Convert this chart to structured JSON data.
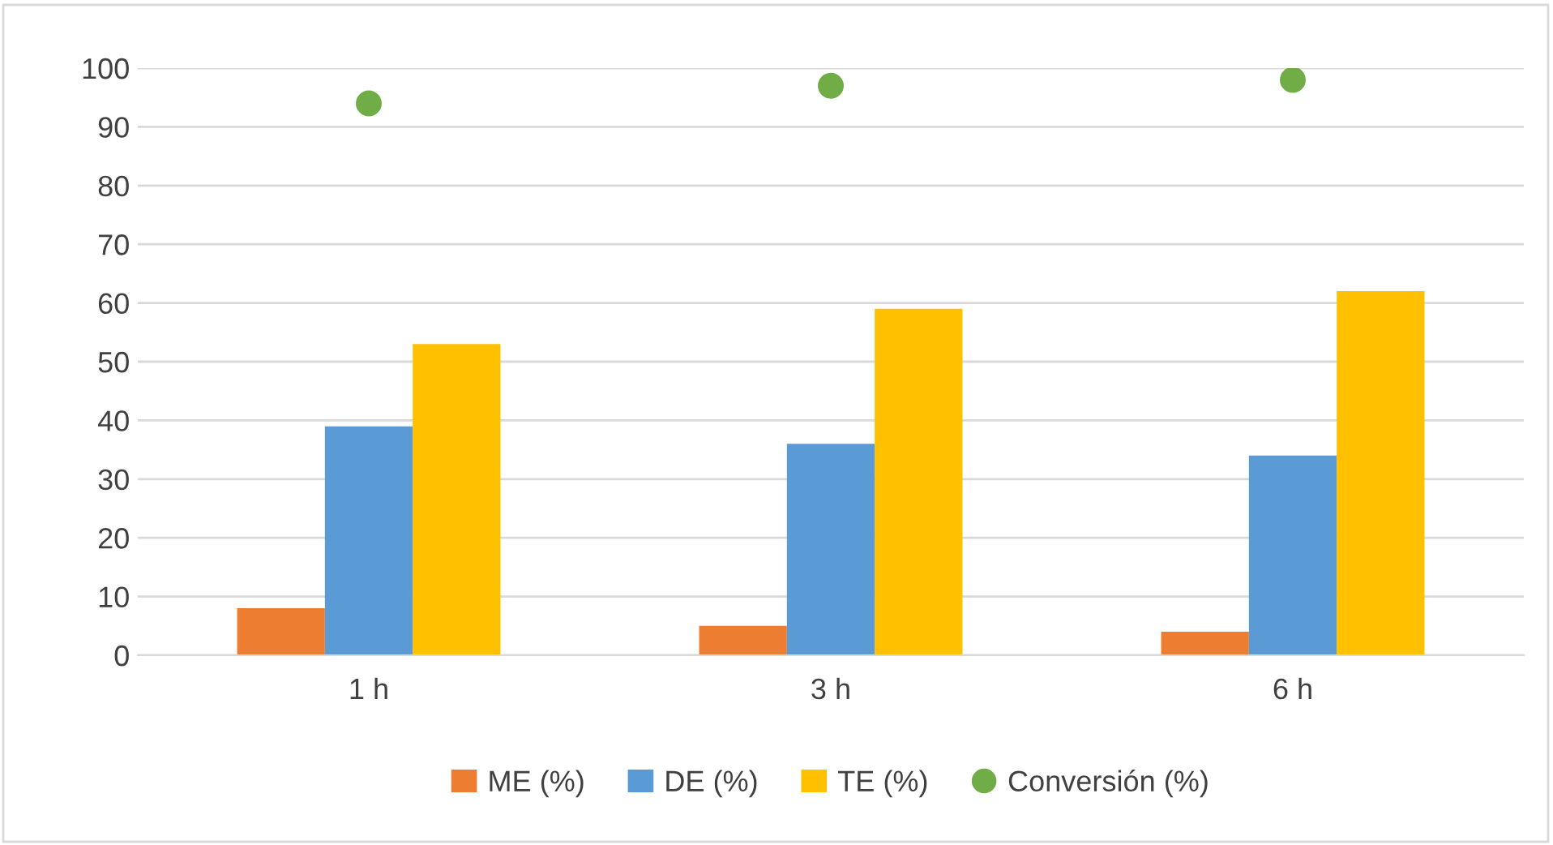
{
  "chart_data": {
    "type": "bar",
    "categories": [
      "1 h",
      "3 h",
      "6 h"
    ],
    "series": [
      {
        "name": "ME (%)",
        "color": "#ed7d31",
        "values": [
          8,
          5,
          4
        ]
      },
      {
        "name": "DE (%)",
        "color": "#5b9bd5",
        "values": [
          39,
          36,
          34
        ]
      },
      {
        "name": "TE (%)",
        "color": "#ffc000",
        "values": [
          53,
          59,
          62
        ]
      },
      {
        "name": "Conversión (%)",
        "type": "scatter",
        "color": "#70ad47",
        "x": [
          "1 h",
          "3 h",
          "6 h"
        ],
        "values": [
          94,
          97,
          98
        ],
        "marker": "circle"
      }
    ],
    "ylim": [
      0,
      100
    ],
    "yticks": [
      0,
      10,
      20,
      30,
      40,
      50,
      60,
      70,
      80,
      90,
      100
    ],
    "grid": "y",
    "legend": "bottom"
  }
}
